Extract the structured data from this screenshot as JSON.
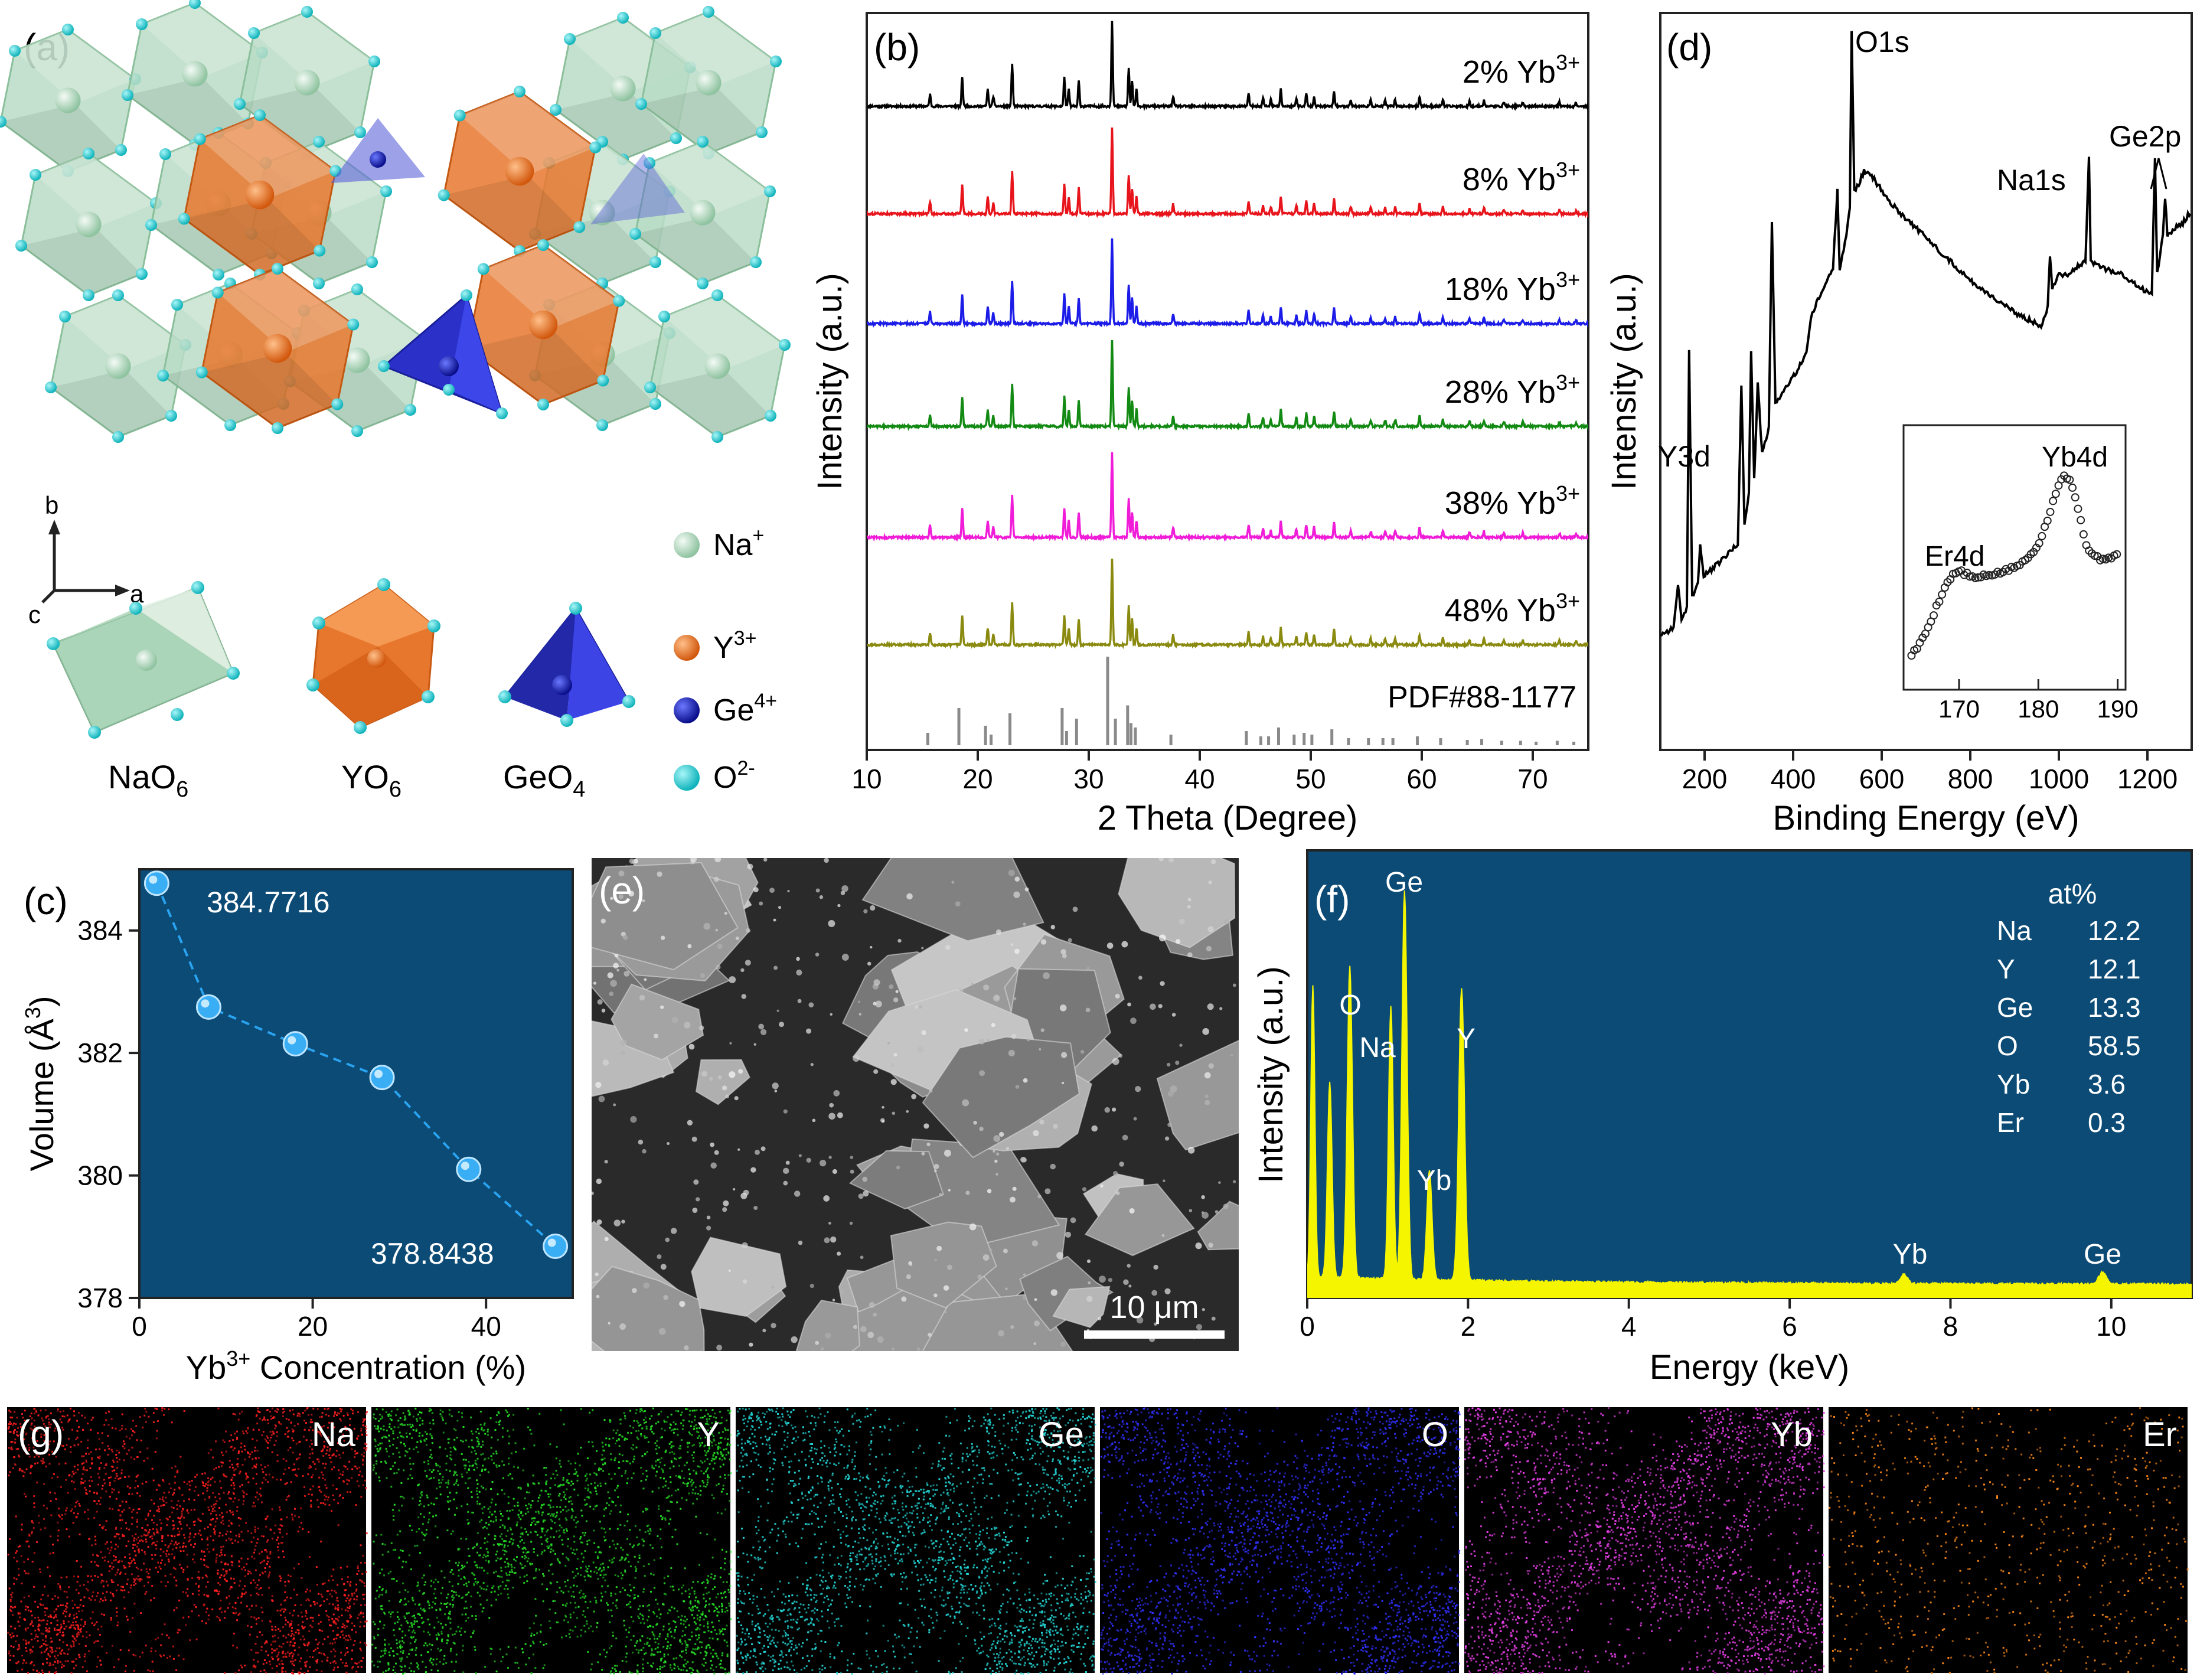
{
  "panels": {
    "a": {
      "label": "(a)",
      "axes": {
        "b": "b",
        "a": "a",
        "c": "c"
      },
      "polyhedra": [
        {
          "name": "NaO",
          "sub": "6",
          "color": "#b9dcc5"
        },
        {
          "name": "YO",
          "sub": "6",
          "color": "#e8772e"
        },
        {
          "name": "GeO",
          "sub": "4",
          "color": "#2e33c8"
        }
      ],
      "legend": [
        {
          "ion": "Na",
          "sup": "+",
          "color": "#cfead8"
        },
        {
          "ion": "Y",
          "sup": "3+",
          "color": "#ef7a26"
        },
        {
          "ion": "Ge",
          "sup": "4+",
          "color": "#1722c4"
        },
        {
          "ion": "O",
          "sup": "2-",
          "color": "#27cfd6"
        }
      ]
    },
    "b": {
      "label": "(b)"
    },
    "c": {
      "label": "(c)"
    },
    "d": {
      "label": "(d)"
    },
    "e": {
      "label": "(e)",
      "scalebar": "10 μm"
    },
    "f": {
      "label": "(f)"
    },
    "g": {
      "label": "(g)",
      "maps": [
        {
          "element": "Na",
          "color": "#ff1f1f"
        },
        {
          "element": "Y",
          "color": "#27e027"
        },
        {
          "element": "Ge",
          "color": "#25d8d8"
        },
        {
          "element": "O",
          "color": "#3030ff"
        },
        {
          "element": "Yb",
          "color": "#e83fe8"
        },
        {
          "element": "Er",
          "color": "#ff8a1a"
        }
      ]
    }
  },
  "chart_data": [
    {
      "id": "b",
      "type": "line",
      "title": "",
      "xlabel": "2 Theta (Degree)",
      "ylabel": "Intensity (a.u.)",
      "xlim": [
        10,
        75
      ],
      "xticks": [
        10,
        20,
        30,
        40,
        50,
        60,
        70
      ],
      "series": [
        {
          "name": "2% Yb",
          "sup": "3+",
          "color": "#000000"
        },
        {
          "name": "8% Yb",
          "sup": "3+",
          "color": "#e8141c"
        },
        {
          "name": "18% Yb",
          "sup": "3+",
          "color": "#1c1ce8"
        },
        {
          "name": "28% Yb",
          "sup": "3+",
          "color": "#138a13"
        },
        {
          "name": "38% Yb",
          "sup": "3+",
          "color": "#f01cd8"
        },
        {
          "name": "48% Yb",
          "sup": "3+",
          "color": "#8a8a10"
        }
      ],
      "peaks": [
        [
          15.7,
          0.14
        ],
        [
          18.6,
          0.35
        ],
        [
          20.9,
          0.2
        ],
        [
          21.4,
          0.12
        ],
        [
          23.1,
          0.5
        ],
        [
          27.8,
          0.35
        ],
        [
          28.2,
          0.2
        ],
        [
          29.1,
          0.3
        ],
        [
          32.1,
          1.0
        ],
        [
          33.6,
          0.45
        ],
        [
          33.9,
          0.3
        ],
        [
          34.3,
          0.2
        ],
        [
          37.6,
          0.12
        ],
        [
          44.4,
          0.15
        ],
        [
          45.7,
          0.1
        ],
        [
          46.4,
          0.08
        ],
        [
          47.3,
          0.2
        ],
        [
          48.7,
          0.1
        ],
        [
          49.6,
          0.15
        ],
        [
          50.3,
          0.12
        ],
        [
          52.1,
          0.18
        ],
        [
          53.6,
          0.08
        ],
        [
          55.4,
          0.07
        ],
        [
          56.7,
          0.07
        ],
        [
          57.6,
          0.08
        ],
        [
          59.8,
          0.12
        ],
        [
          61.9,
          0.08
        ],
        [
          64.3,
          0.06
        ],
        [
          65.6,
          0.07
        ],
        [
          67.4,
          0.05
        ],
        [
          69.1,
          0.05
        ],
        [
          72.4,
          0.05
        ],
        [
          73.9,
          0.04
        ]
      ],
      "reference": {
        "name": "PDF#88-1177",
        "sticks": [
          [
            15.5,
            0.14
          ],
          [
            18.3,
            0.42
          ],
          [
            20.7,
            0.22
          ],
          [
            21.2,
            0.12
          ],
          [
            22.9,
            0.36
          ],
          [
            27.6,
            0.42
          ],
          [
            28.0,
            0.16
          ],
          [
            28.9,
            0.3
          ],
          [
            31.7,
            1.0
          ],
          [
            32.4,
            0.3
          ],
          [
            33.5,
            0.45
          ],
          [
            33.8,
            0.25
          ],
          [
            34.2,
            0.2
          ],
          [
            37.4,
            0.12
          ],
          [
            44.2,
            0.16
          ],
          [
            45.5,
            0.1
          ],
          [
            46.2,
            0.1
          ],
          [
            47.1,
            0.2
          ],
          [
            48.5,
            0.12
          ],
          [
            49.4,
            0.14
          ],
          [
            50.1,
            0.12
          ],
          [
            51.9,
            0.18
          ],
          [
            53.4,
            0.08
          ],
          [
            55.2,
            0.08
          ],
          [
            56.5,
            0.08
          ],
          [
            57.4,
            0.08
          ],
          [
            59.6,
            0.1
          ],
          [
            61.7,
            0.08
          ],
          [
            64.1,
            0.06
          ],
          [
            65.4,
            0.07
          ],
          [
            67.2,
            0.05
          ],
          [
            68.9,
            0.05
          ],
          [
            70.3,
            0.04
          ],
          [
            72.2,
            0.05
          ],
          [
            73.7,
            0.04
          ]
        ]
      }
    },
    {
      "id": "d",
      "type": "line",
      "title": "",
      "xlabel": "Binding Energy (eV)",
      "ylabel": "Intensity (a.u.)",
      "xlim": [
        100,
        1300
      ],
      "xticks": [
        200,
        400,
        600,
        800,
        1000,
        1200
      ],
      "spectrum": [
        [
          100,
          0.06
        ],
        [
          130,
          0.07
        ],
        [
          140,
          0.14
        ],
        [
          148,
          0.08
        ],
        [
          160,
          0.1
        ],
        [
          165,
          0.5
        ],
        [
          172,
          0.12
        ],
        [
          185,
          0.14
        ],
        [
          190,
          0.2
        ],
        [
          198,
          0.15
        ],
        [
          230,
          0.17
        ],
        [
          275,
          0.2
        ],
        [
          283,
          0.45
        ],
        [
          290,
          0.23
        ],
        [
          300,
          0.28
        ],
        [
          305,
          0.5
        ],
        [
          312,
          0.3
        ],
        [
          320,
          0.45
        ],
        [
          330,
          0.34
        ],
        [
          345,
          0.38
        ],
        [
          352,
          0.7
        ],
        [
          360,
          0.42
        ],
        [
          390,
          0.45
        ],
        [
          410,
          0.47
        ],
        [
          430,
          0.5
        ],
        [
          440,
          0.55
        ],
        [
          450,
          0.57
        ],
        [
          470,
          0.6
        ],
        [
          490,
          0.63
        ],
        [
          500,
          0.75
        ],
        [
          505,
          0.63
        ],
        [
          520,
          0.68
        ],
        [
          528,
          0.72
        ],
        [
          532,
          1.0
        ],
        [
          538,
          0.75
        ],
        [
          548,
          0.76
        ],
        [
          560,
          0.78
        ],
        [
          580,
          0.77
        ],
        [
          620,
          0.73
        ],
        [
          680,
          0.69
        ],
        [
          740,
          0.65
        ],
        [
          800,
          0.61
        ],
        [
          860,
          0.58
        ],
        [
          900,
          0.56
        ],
        [
          930,
          0.55
        ],
        [
          960,
          0.54
        ],
        [
          975,
          0.57
        ],
        [
          980,
          0.65
        ],
        [
          985,
          0.6
        ],
        [
          1000,
          0.62
        ],
        [
          1020,
          0.62
        ],
        [
          1040,
          0.63
        ],
        [
          1060,
          0.64
        ],
        [
          1068,
          0.8
        ],
        [
          1072,
          0.64
        ],
        [
          1100,
          0.63
        ],
        [
          1140,
          0.62
        ],
        [
          1180,
          0.6
        ],
        [
          1210,
          0.59
        ],
        [
          1217,
          0.8
        ],
        [
          1222,
          0.62
        ],
        [
          1235,
          0.68
        ],
        [
          1240,
          0.74
        ],
        [
          1245,
          0.68
        ],
        [
          1260,
          0.69
        ],
        [
          1280,
          0.7
        ],
        [
          1300,
          0.72
        ]
      ],
      "annotations": [
        "O1s",
        "Na1s",
        "Ge2p",
        "Y3d"
      ],
      "inset": {
        "xlim": [
          163,
          191
        ],
        "xticks": [
          170,
          180,
          190
        ],
        "labels": [
          "Yb4d",
          "Er4d"
        ],
        "points": [
          [
            164,
            0.05
          ],
          [
            165,
            0.1
          ],
          [
            166,
            0.18
          ],
          [
            167,
            0.28
          ],
          [
            168,
            0.38
          ],
          [
            169,
            0.45
          ],
          [
            170,
            0.48
          ],
          [
            171,
            0.46
          ],
          [
            172,
            0.44
          ],
          [
            173,
            0.45
          ],
          [
            174,
            0.46
          ],
          [
            175,
            0.47
          ],
          [
            176,
            0.48
          ],
          [
            177,
            0.5
          ],
          [
            178,
            0.52
          ],
          [
            179,
            0.56
          ],
          [
            180,
            0.62
          ],
          [
            181,
            0.72
          ],
          [
            182,
            0.86
          ],
          [
            183,
            0.97
          ],
          [
            184,
            0.95
          ],
          [
            185,
            0.8
          ],
          [
            186,
            0.62
          ],
          [
            187,
            0.55
          ],
          [
            188,
            0.54
          ],
          [
            189,
            0.55
          ],
          [
            190,
            0.56
          ]
        ]
      }
    },
    {
      "id": "c",
      "type": "line",
      "title": "",
      "xlabel": "Yb",
      "xlabel_sup": "3+",
      "xlabel_rest": " Concentration (%)",
      "ylabel": "Volume (Å",
      "ylabel_sup": "3",
      "ylabel_rest": ")",
      "xlim": [
        0,
        50
      ],
      "ylim": [
        378,
        385
      ],
      "xticks": [
        0,
        20,
        40
      ],
      "yticks": [
        378,
        380,
        382,
        384
      ],
      "x": [
        2,
        8,
        18,
        28,
        38,
        48
      ],
      "y": [
        384.7716,
        382.75,
        382.15,
        381.6,
        380.1,
        378.8438
      ],
      "labels": [
        "384.7716",
        "378.8438"
      ]
    },
    {
      "id": "f",
      "type": "line",
      "title": "",
      "xlabel": "Energy (keV)",
      "ylabel": "Intensity (a.u.)",
      "xlim": [
        0,
        11
      ],
      "xticks": [
        0,
        2,
        4,
        6,
        8,
        10
      ],
      "peaks": [
        [
          0.07,
          0.75,
          0.035
        ],
        [
          0.28,
          0.5,
          0.04
        ],
        [
          0.53,
          0.8,
          0.045
        ],
        [
          1.04,
          0.7,
          0.04
        ],
        [
          1.21,
          1.0,
          0.045
        ],
        [
          1.52,
          0.28,
          0.045
        ],
        [
          1.92,
          0.75,
          0.05
        ],
        [
          7.42,
          0.025,
          0.06
        ],
        [
          9.89,
          0.03,
          0.07
        ]
      ],
      "peak_labels": [
        "Ge",
        "O",
        "Na",
        "Y",
        "Yb",
        "Yb",
        "Ge"
      ],
      "composition": {
        "header": "at%",
        "rows": [
          {
            "el": "Na",
            "val": "12.2"
          },
          {
            "el": "Y",
            "val": "12.1"
          },
          {
            "el": "Ge",
            "val": "13.3"
          },
          {
            "el": "O",
            "val": "58.5"
          },
          {
            "el": "Yb",
            "val": "3.6"
          },
          {
            "el": "Er",
            "val": "0.3"
          }
        ]
      }
    }
  ]
}
